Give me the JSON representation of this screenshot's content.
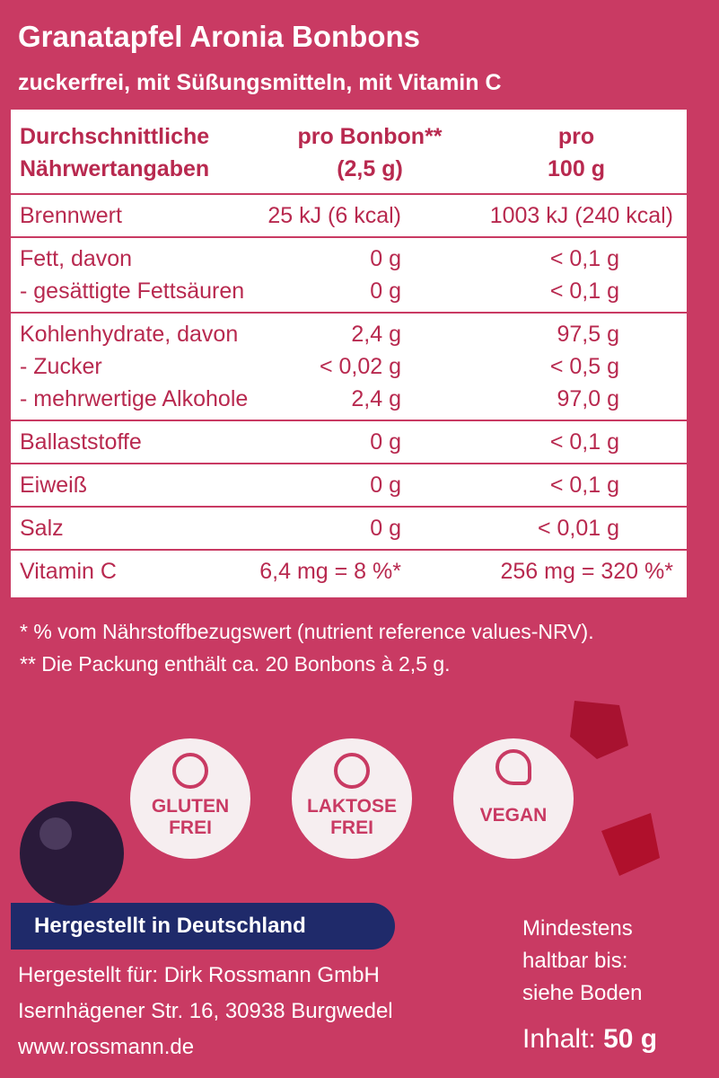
{
  "title": "Granatapfel Aronia Bonbons",
  "subtitle": "zuckerfrei, mit Süßungsmitteln, mit Vitamin C",
  "table": {
    "header": [
      [
        "Durchschnittliche",
        "Nährwertangaben"
      ],
      [
        "pro Bonbon**",
        "(2,5 g)"
      ],
      [
        "pro",
        "100 g"
      ]
    ],
    "groups": [
      [
        [
          "Brennwert",
          "25 kJ (6 kcal)",
          "1003 kJ (240 kcal)"
        ]
      ],
      [
        [
          "Fett, davon",
          "0 g",
          "< 0,1 g"
        ],
        [
          "- gesättigte Fettsäuren",
          "0 g",
          "< 0,1 g"
        ]
      ],
      [
        [
          "Kohlenhydrate, davon",
          "2,4 g",
          "97,5 g"
        ],
        [
          "- Zucker",
          "< 0,02 g",
          "< 0,5 g"
        ],
        [
          "- mehrwertige Alkohole",
          "2,4 g",
          "97,0 g"
        ]
      ],
      [
        [
          "Ballaststoffe",
          "0 g",
          "< 0,1 g"
        ]
      ],
      [
        [
          "Eiweiß",
          "0 g",
          "< 0,1 g"
        ]
      ],
      [
        [
          "Salz",
          "0 g",
          "< 0,01 g"
        ]
      ],
      [
        [
          "Vitamin C",
          "6,4 mg = 8 %*",
          "256 mg = 320 %*"
        ]
      ]
    ]
  },
  "footnotes": [
    "* % vom Nährstoffbezugswert (nutrient reference values-NRV).",
    "** Die Packung enthält ca. 20 Bonbons à 2,5 g."
  ],
  "badges": [
    [
      "GLUTEN",
      "FREI"
    ],
    [
      "LAKTOSE",
      "FREI"
    ],
    [
      "VEGAN"
    ]
  ],
  "origin": "Hergestellt in Deutschland",
  "manufacturer": [
    "Hergestellt für: Dirk Rossmann GmbH",
    "Isernhägener Str. 16, 30938 Burgwedel",
    "www.rossmann.de"
  ],
  "best_before": [
    "Mindestens",
    "haltbar bis:",
    "siehe Boden"
  ],
  "content": {
    "label": "Inhalt:",
    "value": "50 g"
  }
}
